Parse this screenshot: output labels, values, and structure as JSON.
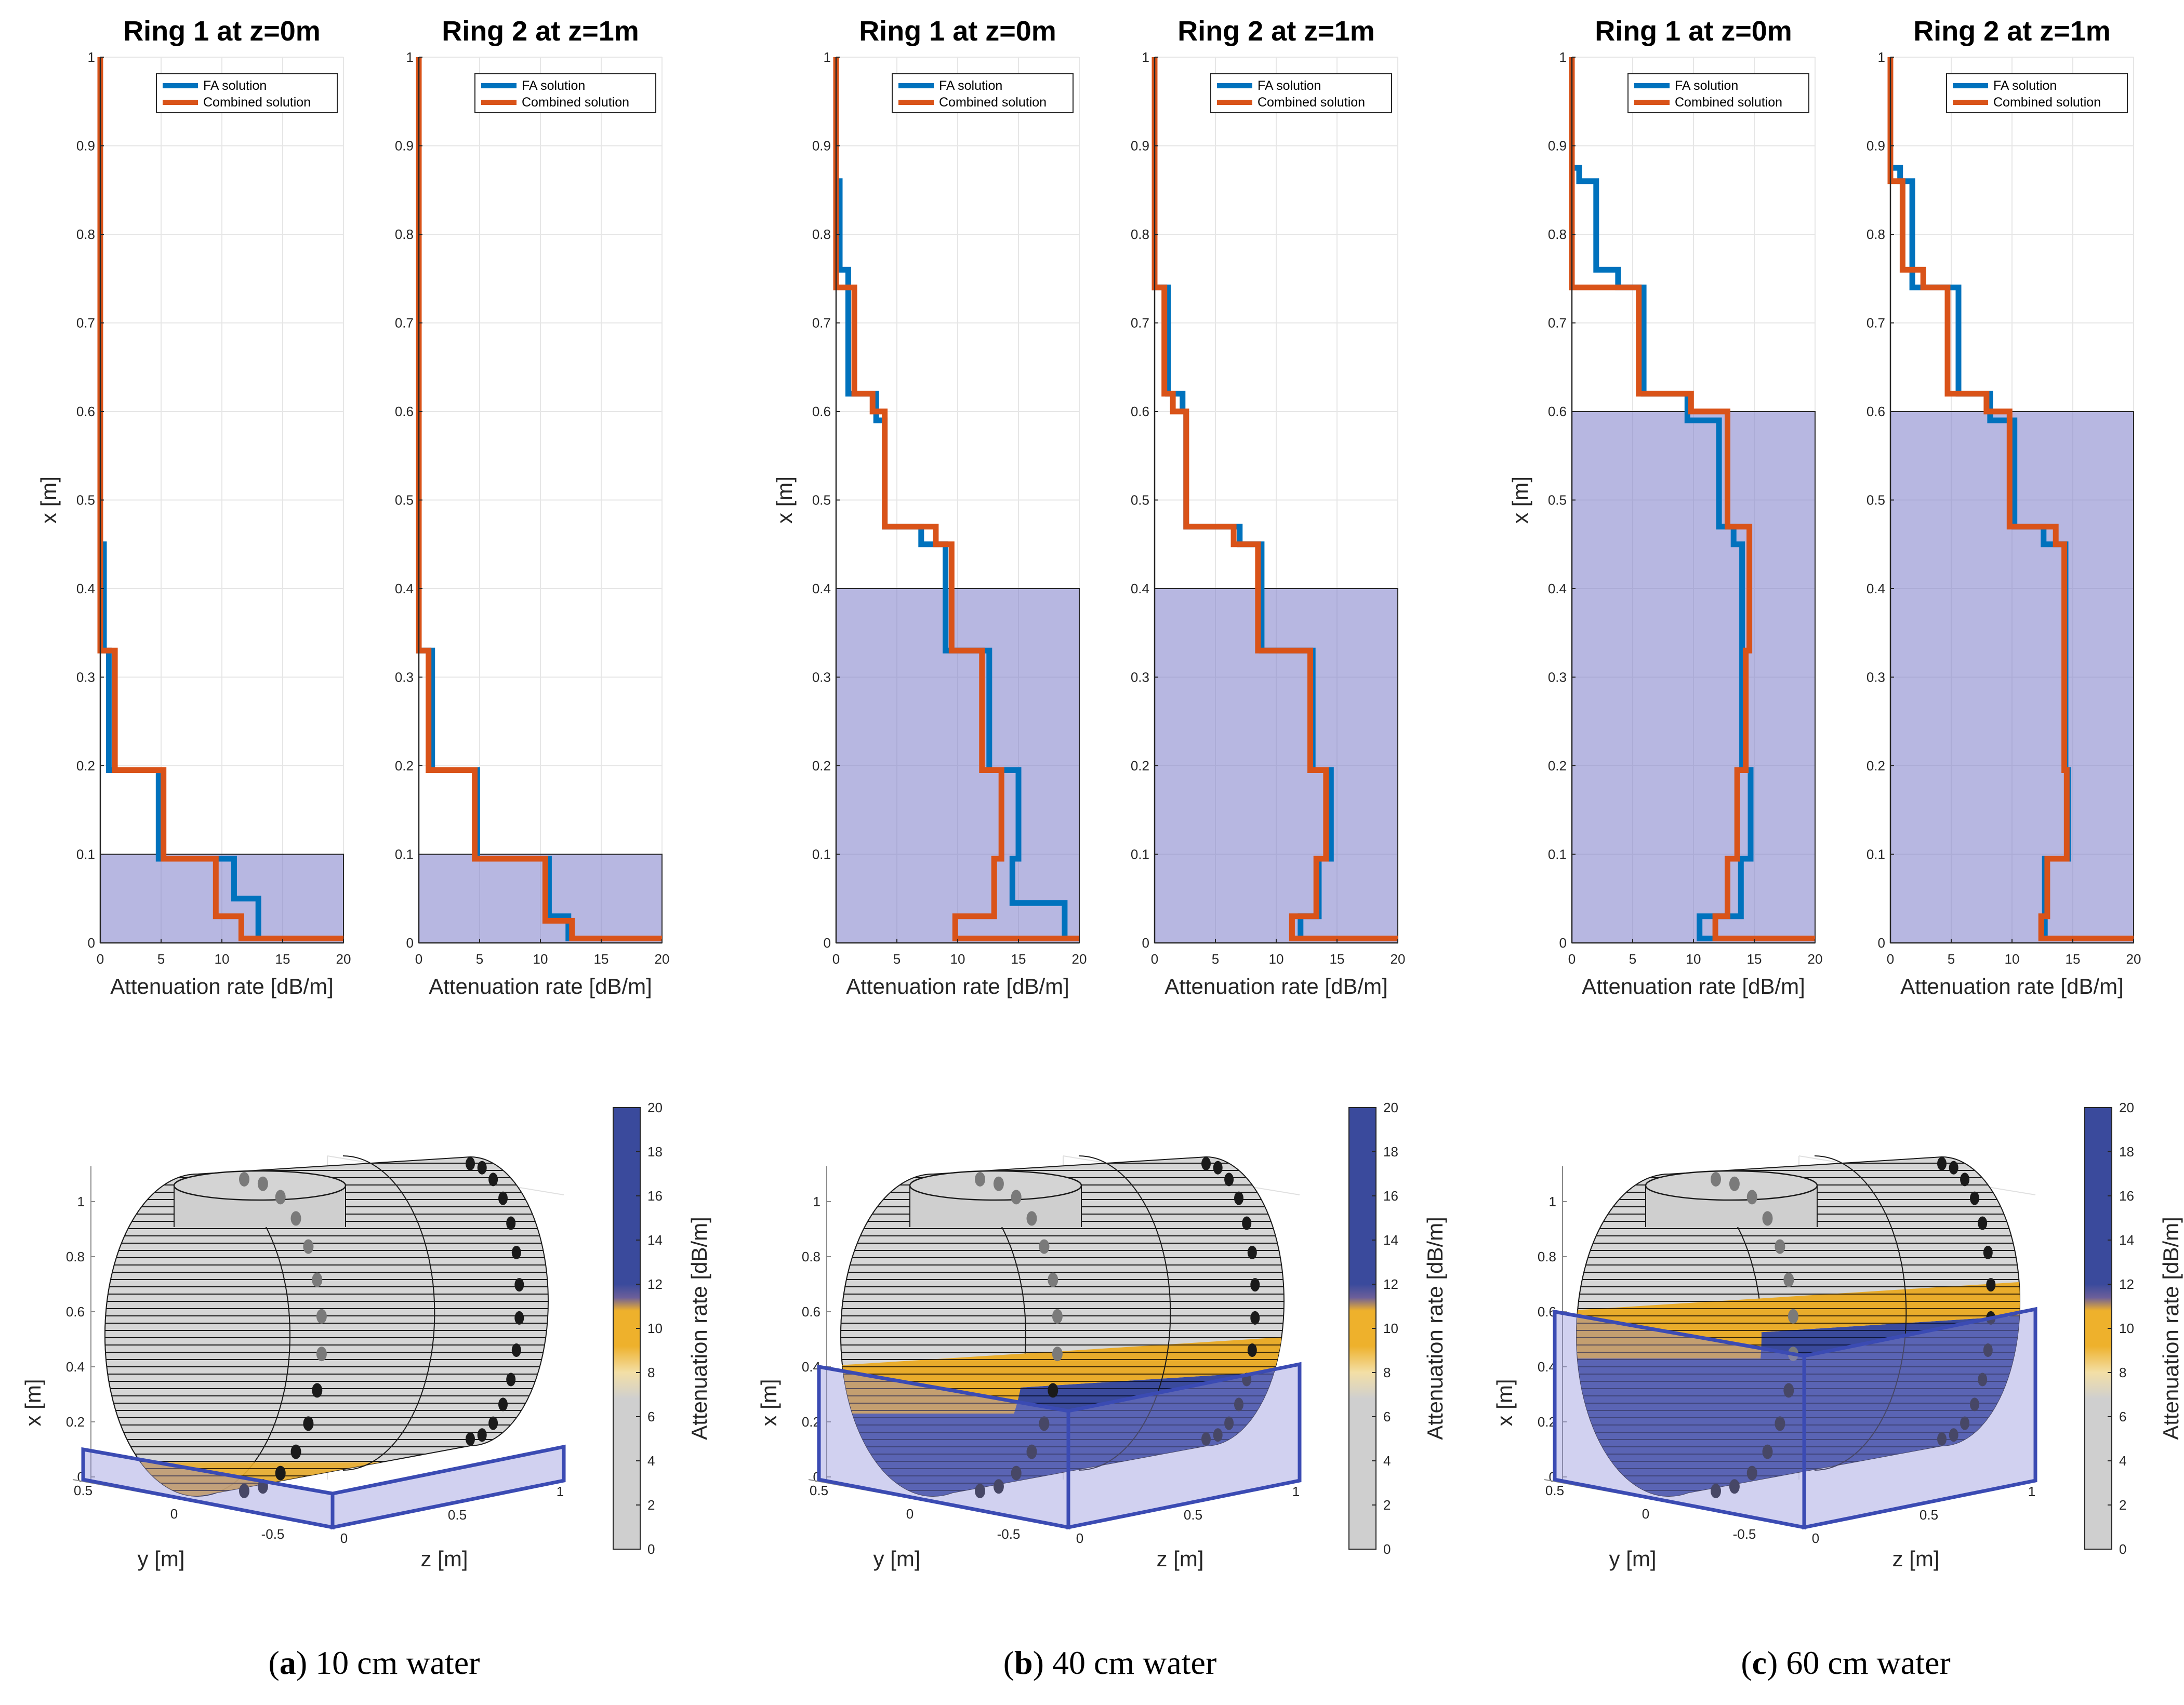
{
  "chart_data": {
    "type": "line",
    "series_names": [
      "FA solution",
      "Combined solution"
    ],
    "colors": {
      "fa": "#0072BD",
      "combined": "#D95319",
      "water": "#7b7bc8",
      "grid": "#e6e6e6",
      "axis": "#262626"
    },
    "x_label": "Attenuation rate [dB/m]",
    "y_label": "x [m]",
    "x_ticks": [
      "0",
      "5",
      "10",
      "15",
      "20"
    ],
    "y_ticks": [
      "0",
      "0.1",
      "0.2",
      "0.3",
      "0.4",
      "0.5",
      "0.6",
      "0.7",
      "0.8",
      "0.9",
      "1"
    ],
    "xlim": [
      0,
      20
    ],
    "ylim": [
      0,
      1
    ],
    "colorbar": {
      "label": "Attenuation rate [dB/m]",
      "ticks": [
        "0",
        "2",
        "4",
        "6",
        "8",
        "10",
        "12",
        "14",
        "16",
        "18",
        "20"
      ],
      "range": [
        0,
        20
      ]
    },
    "tank_axes": {
      "x_label": "x [m]",
      "y_label": "y [m]",
      "z_label": "z [m]",
      "x_ticks": [
        "0",
        "0.2",
        "0.4",
        "0.6",
        "0.8",
        "1"
      ],
      "y_ticks": [
        "0.5",
        "0",
        "-0.5"
      ],
      "z_ticks": [
        "0",
        "0.5",
        "1"
      ]
    },
    "groups": [
      {
        "caption_letter": "a",
        "caption_text": "10 cm water",
        "water_level": 0.1,
        "panels": [
          {
            "title": "Ring 1 at z=0m",
            "fa": [
              [
                0,
                1
              ],
              [
                0,
                0.45
              ],
              [
                0.3,
                0.45
              ],
              [
                0.3,
                0.33
              ],
              [
                0.7,
                0.33
              ],
              [
                0.7,
                0.195
              ],
              [
                4.8,
                0.195
              ],
              [
                4.8,
                0.095
              ],
              [
                11,
                0.095
              ],
              [
                11,
                0.05
              ],
              [
                13,
                0.05
              ],
              [
                13,
                0.005
              ],
              [
                20,
                0.005
              ]
            ],
            "combined": [
              [
                0,
                1
              ],
              [
                0,
                0.33
              ],
              [
                1.2,
                0.33
              ],
              [
                1.2,
                0.195
              ],
              [
                5.2,
                0.195
              ],
              [
                5.2,
                0.095
              ],
              [
                9.5,
                0.095
              ],
              [
                9.5,
                0.03
              ],
              [
                11.6,
                0.03
              ],
              [
                11.6,
                0.005
              ],
              [
                20,
                0.005
              ]
            ]
          },
          {
            "title": "Ring 2 at z=1m",
            "fa": [
              [
                0,
                1
              ],
              [
                0,
                0.33
              ],
              [
                1.1,
                0.33
              ],
              [
                1.1,
                0.195
              ],
              [
                4.8,
                0.195
              ],
              [
                4.8,
                0.095
              ],
              [
                10.7,
                0.095
              ],
              [
                10.7,
                0.03
              ],
              [
                12.3,
                0.03
              ],
              [
                12.3,
                0.005
              ],
              [
                20,
                0.005
              ]
            ],
            "combined": [
              [
                0,
                1
              ],
              [
                0,
                0.33
              ],
              [
                0.8,
                0.33
              ],
              [
                0.8,
                0.195
              ],
              [
                4.6,
                0.195
              ],
              [
                4.6,
                0.095
              ],
              [
                10.4,
                0.095
              ],
              [
                10.4,
                0.025
              ],
              [
                12.6,
                0.025
              ],
              [
                12.6,
                0.005
              ],
              [
                20,
                0.005
              ]
            ]
          }
        ]
      },
      {
        "caption_letter": "b",
        "caption_text": "40 cm water",
        "water_level": 0.4,
        "panels": [
          {
            "title": "Ring 1 at z=0m",
            "fa": [
              [
                0,
                1
              ],
              [
                0,
                0.86
              ],
              [
                0.3,
                0.86
              ],
              [
                0.3,
                0.76
              ],
              [
                1.0,
                0.76
              ],
              [
                1.0,
                0.62
              ],
              [
                3.3,
                0.62
              ],
              [
                3.3,
                0.59
              ],
              [
                4.0,
                0.59
              ],
              [
                4.0,
                0.47
              ],
              [
                7.0,
                0.47
              ],
              [
                7.0,
                0.45
              ],
              [
                9.0,
                0.45
              ],
              [
                9.0,
                0.33
              ],
              [
                12.6,
                0.33
              ],
              [
                12.6,
                0.195
              ],
              [
                15.0,
                0.195
              ],
              [
                15.0,
                0.095
              ],
              [
                14.5,
                0.095
              ],
              [
                14.5,
                0.045
              ],
              [
                18.8,
                0.045
              ],
              [
                18.8,
                0.005
              ],
              [
                20,
                0.005
              ]
            ],
            "combined": [
              [
                0,
                1
              ],
              [
                0,
                0.74
              ],
              [
                1.5,
                0.74
              ],
              [
                1.5,
                0.62
              ],
              [
                3.0,
                0.62
              ],
              [
                3.0,
                0.6
              ],
              [
                4.0,
                0.6
              ],
              [
                4.0,
                0.47
              ],
              [
                8.2,
                0.47
              ],
              [
                8.2,
                0.45
              ],
              [
                9.5,
                0.45
              ],
              [
                9.5,
                0.33
              ],
              [
                12,
                0.33
              ],
              [
                12,
                0.195
              ],
              [
                13.6,
                0.195
              ],
              [
                13.6,
                0.095
              ],
              [
                13,
                0.095
              ],
              [
                13,
                0.03
              ],
              [
                9.8,
                0.03
              ],
              [
                9.8,
                0.005
              ],
              [
                20,
                0.005
              ]
            ]
          },
          {
            "title": "Ring 2 at z=1m",
            "fa": [
              [
                0,
                1
              ],
              [
                0,
                0.74
              ],
              [
                1.1,
                0.74
              ],
              [
                1.1,
                0.62
              ],
              [
                2.3,
                0.62
              ],
              [
                2.3,
                0.6
              ],
              [
                2.6,
                0.6
              ],
              [
                2.6,
                0.47
              ],
              [
                7.0,
                0.47
              ],
              [
                7.0,
                0.45
              ],
              [
                8.8,
                0.45
              ],
              [
                8.8,
                0.33
              ],
              [
                13.0,
                0.33
              ],
              [
                13.0,
                0.195
              ],
              [
                14.5,
                0.195
              ],
              [
                14.5,
                0.095
              ],
              [
                13.5,
                0.095
              ],
              [
                13.5,
                0.03
              ],
              [
                12.0,
                0.03
              ],
              [
                12.0,
                0.005
              ],
              [
                20,
                0.005
              ]
            ],
            "combined": [
              [
                0,
                1
              ],
              [
                0,
                0.74
              ],
              [
                0.8,
                0.74
              ],
              [
                0.8,
                0.62
              ],
              [
                1.5,
                0.62
              ],
              [
                1.5,
                0.6
              ],
              [
                2.6,
                0.6
              ],
              [
                2.6,
                0.47
              ],
              [
                6.5,
                0.47
              ],
              [
                6.5,
                0.45
              ],
              [
                8.5,
                0.45
              ],
              [
                8.5,
                0.33
              ],
              [
                12.8,
                0.33
              ],
              [
                12.8,
                0.195
              ],
              [
                14.1,
                0.195
              ],
              [
                14.1,
                0.095
              ],
              [
                13.3,
                0.095
              ],
              [
                13.3,
                0.03
              ],
              [
                11.3,
                0.03
              ],
              [
                11.3,
                0.005
              ],
              [
                20,
                0.005
              ]
            ]
          }
        ]
      },
      {
        "caption_letter": "c",
        "caption_text": "60 cm water",
        "water_level": 0.6,
        "panels": [
          {
            "title": "Ring 1 at z=0m",
            "fa": [
              [
                0,
                1
              ],
              [
                0,
                0.875
              ],
              [
                0.6,
                0.875
              ],
              [
                0.6,
                0.86
              ],
              [
                2.0,
                0.86
              ],
              [
                2.0,
                0.76
              ],
              [
                3.8,
                0.76
              ],
              [
                3.8,
                0.74
              ],
              [
                5.9,
                0.74
              ],
              [
                5.9,
                0.62
              ],
              [
                9.5,
                0.62
              ],
              [
                9.5,
                0.59
              ],
              [
                12.1,
                0.59
              ],
              [
                12.1,
                0.47
              ],
              [
                13.3,
                0.47
              ],
              [
                13.3,
                0.45
              ],
              [
                14.0,
                0.45
              ],
              [
                14.0,
                0.195
              ],
              [
                14.7,
                0.195
              ],
              [
                14.7,
                0.095
              ],
              [
                13.9,
                0.095
              ],
              [
                13.9,
                0.03
              ],
              [
                10.5,
                0.03
              ],
              [
                10.5,
                0.005
              ],
              [
                20,
                0.005
              ]
            ],
            "combined": [
              [
                0,
                1
              ],
              [
                0,
                0.74
              ],
              [
                5.5,
                0.74
              ],
              [
                5.5,
                0.62
              ],
              [
                9.8,
                0.62
              ],
              [
                9.8,
                0.6
              ],
              [
                12.8,
                0.6
              ],
              [
                12.8,
                0.47
              ],
              [
                14.6,
                0.47
              ],
              [
                14.6,
                0.45
              ],
              [
                14.6,
                0.33
              ],
              [
                14.3,
                0.33
              ],
              [
                14.3,
                0.195
              ],
              [
                13.6,
                0.195
              ],
              [
                13.6,
                0.095
              ],
              [
                12.8,
                0.095
              ],
              [
                12.8,
                0.03
              ],
              [
                11.8,
                0.03
              ],
              [
                11.8,
                0.005
              ],
              [
                20,
                0.005
              ]
            ]
          },
          {
            "title": "Ring 2 at z=1m",
            "fa": [
              [
                0,
                1
              ],
              [
                0,
                0.875
              ],
              [
                0.8,
                0.875
              ],
              [
                0.8,
                0.86
              ],
              [
                1.8,
                0.86
              ],
              [
                1.8,
                0.74
              ],
              [
                5.6,
                0.74
              ],
              [
                5.6,
                0.62
              ],
              [
                8.2,
                0.62
              ],
              [
                8.2,
                0.59
              ],
              [
                10.2,
                0.59
              ],
              [
                10.2,
                0.47
              ],
              [
                12.6,
                0.47
              ],
              [
                12.6,
                0.45
              ],
              [
                14.4,
                0.45
              ],
              [
                14.4,
                0.195
              ],
              [
                14.6,
                0.195
              ],
              [
                14.6,
                0.095
              ],
              [
                12.7,
                0.095
              ],
              [
                12.7,
                0.005
              ],
              [
                20,
                0.005
              ]
            ],
            "combined": [
              [
                0,
                1
              ],
              [
                0,
                0.86
              ],
              [
                1.0,
                0.86
              ],
              [
                1.0,
                0.76
              ],
              [
                2.7,
                0.76
              ],
              [
                2.7,
                0.74
              ],
              [
                4.7,
                0.74
              ],
              [
                4.7,
                0.62
              ],
              [
                7.9,
                0.62
              ],
              [
                7.9,
                0.6
              ],
              [
                9.8,
                0.6
              ],
              [
                9.8,
                0.47
              ],
              [
                13.6,
                0.47
              ],
              [
                13.6,
                0.45
              ],
              [
                14.3,
                0.45
              ],
              [
                14.3,
                0.195
              ],
              [
                14.5,
                0.195
              ],
              [
                14.5,
                0.095
              ],
              [
                12.9,
                0.095
              ],
              [
                12.9,
                0.03
              ],
              [
                12.4,
                0.03
              ],
              [
                12.4,
                0.005
              ],
              [
                20,
                0.005
              ]
            ]
          }
        ]
      }
    ]
  }
}
